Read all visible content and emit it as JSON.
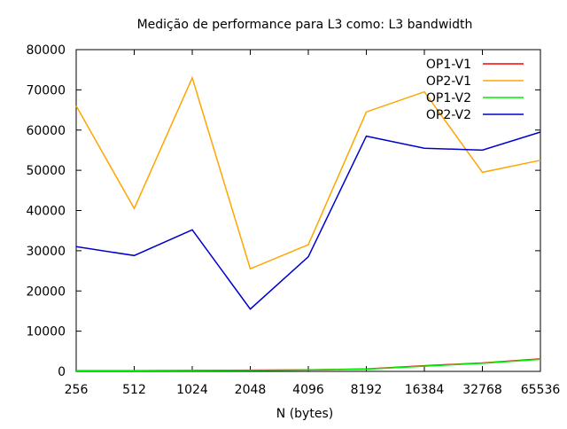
{
  "chart_data": {
    "type": "line",
    "title": "Medição de performance para L3 como: L3 bandwidth",
    "xlabel": "N (bytes)",
    "ylabel": "",
    "categories": [
      "256",
      "512",
      "1024",
      "2048",
      "4096",
      "8192",
      "16384",
      "32768",
      "65536"
    ],
    "ylim": [
      0,
      80000
    ],
    "yticks": [
      0,
      10000,
      20000,
      30000,
      40000,
      50000,
      60000,
      70000,
      80000
    ],
    "legend_position": "top-right",
    "grid": false,
    "series": [
      {
        "name": "OP1-V1",
        "color": "#ff0000",
        "values": [
          200,
          200,
          250,
          300,
          400,
          600,
          1400,
          2100,
          3100
        ]
      },
      {
        "name": "OP2-V1",
        "color": "#ffa500",
        "values": [
          66000,
          40500,
          73000,
          25500,
          31500,
          64500,
          69500,
          49500,
          52500
        ]
      },
      {
        "name": "OP1-V2",
        "color": "#00ee00",
        "values": [
          150,
          150,
          200,
          250,
          350,
          550,
          1300,
          2000,
          3000
        ]
      },
      {
        "name": "OP2-V2",
        "color": "#0000cc",
        "values": [
          31000,
          28800,
          35200,
          15500,
          28500,
          58500,
          55500,
          55000,
          59500
        ]
      }
    ]
  }
}
